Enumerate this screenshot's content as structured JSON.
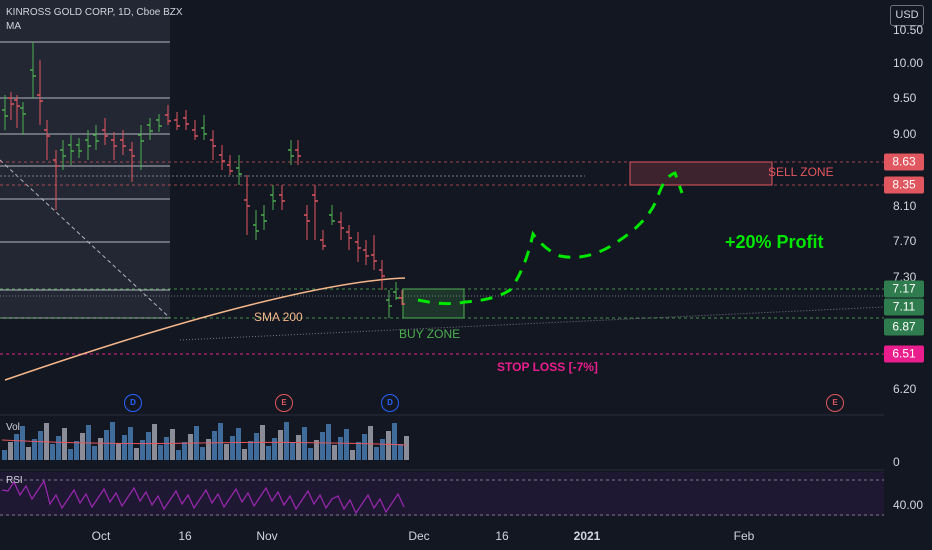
{
  "header": {
    "symbol_line": "KINROSS GOLD CORP, 1D, Cboe BZX",
    "indicator": "MA"
  },
  "currency_button": "USD",
  "price_axis": [
    "10.50",
    "10.00",
    "9.50",
    "9.00",
    "8.10",
    "7.70",
    "7.30",
    "6.20",
    "0",
    "40.00"
  ],
  "price_tags": [
    {
      "label": "8.63",
      "color": "#e0575f"
    },
    {
      "label": "8.35",
      "color": "#e0575f"
    },
    {
      "label": "7.17",
      "color": "#2f7d4f"
    },
    {
      "label": "7.11",
      "color": "#2f7d4f"
    },
    {
      "label": "6.87",
      "color": "#2f7d4f"
    },
    {
      "label": "6.51",
      "color": "#e91e8c"
    }
  ],
  "time_axis": [
    "Oct",
    "16",
    "Nov",
    "Dec",
    "16",
    "2021",
    "Feb"
  ],
  "annotations": {
    "sell_zone": "SELL ZONE",
    "buy_zone": "BUY ZONE",
    "sma": "SMA 200",
    "stop_loss": "STOP LOSS [-7%]",
    "profit": "+20% Profit"
  },
  "event_markers": [
    "D",
    "E",
    "D",
    "E"
  ],
  "panes": {
    "volume_label": "Vol",
    "rsi_label": "RSI"
  },
  "colors": {
    "background": "#131722",
    "up": "#4caf50",
    "down": "#e0575f",
    "sell_zone": "#e0575f",
    "buy_zone": "#4caf50",
    "stop_loss": "#e91e8c",
    "profit_path": "#00e600",
    "sma": "#f5b78b",
    "rsi": "#9c27b0"
  }
}
